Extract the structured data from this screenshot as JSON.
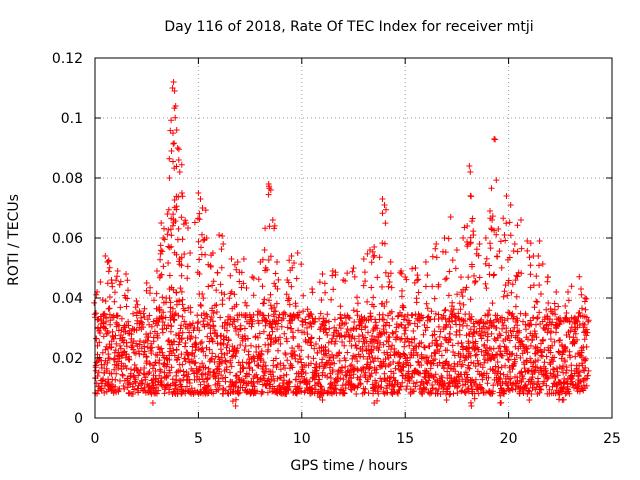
{
  "chart_data": {
    "type": "scatter",
    "title": "Day 116 of 2018, Rate Of TEC Index for receiver mtji",
    "xlabel": "GPS time / hours",
    "ylabel": "ROTI / TECUs",
    "xlim": [
      0,
      25
    ],
    "ylim": [
      0,
      0.12
    ],
    "xticks": [
      0,
      5,
      10,
      15,
      20,
      25
    ],
    "xtick_labels": [
      "0",
      "5",
      "10",
      "15",
      "20",
      "25"
    ],
    "yticks": [
      0,
      0.02,
      0.04,
      0.06,
      0.08,
      0.1,
      0.12
    ],
    "ytick_labels": [
      "0",
      "0.02",
      "0.04",
      "0.06",
      "0.08",
      "0.1",
      "0.12"
    ],
    "grid": true,
    "marker": "plus",
    "series_color": "#ff0000",
    "data_extent_x": [
      0,
      23.8
    ],
    "series": [
      {
        "name": "ROTI",
        "points": [
          [
            0.1,
            0.042
          ],
          [
            0.3,
            0.033
          ],
          [
            0.5,
            0.054
          ],
          [
            0.6,
            0.052
          ],
          [
            0.8,
            0.046
          ],
          [
            1.1,
            0.049
          ],
          [
            1.5,
            0.048
          ],
          [
            2.0,
            0.039
          ],
          [
            2.5,
            0.045
          ],
          [
            3.0,
            0.049
          ],
          [
            3.2,
            0.065
          ],
          [
            3.3,
            0.06
          ],
          [
            3.5,
            0.068
          ],
          [
            3.6,
            0.08
          ],
          [
            3.7,
            0.089
          ],
          [
            3.75,
            0.11
          ],
          [
            3.8,
            0.112
          ],
          [
            3.85,
            0.109
          ],
          [
            3.9,
            0.104
          ],
          [
            3.95,
            0.096
          ],
          [
            4.0,
            0.09
          ],
          [
            4.05,
            0.086
          ],
          [
            4.1,
            0.082
          ],
          [
            4.2,
            0.075
          ],
          [
            4.4,
            0.065
          ],
          [
            4.6,
            0.055
          ],
          [
            5.0,
            0.075
          ],
          [
            5.1,
            0.073
          ],
          [
            5.2,
            0.07
          ],
          [
            5.4,
            0.06
          ],
          [
            5.7,
            0.055
          ],
          [
            6.0,
            0.061
          ],
          [
            6.2,
            0.058
          ],
          [
            6.6,
            0.053
          ],
          [
            6.9,
            0.052
          ],
          [
            7.2,
            0.053
          ],
          [
            7.6,
            0.047
          ],
          [
            8.0,
            0.052
          ],
          [
            8.2,
            0.056
          ],
          [
            8.4,
            0.078
          ],
          [
            8.5,
            0.076
          ],
          [
            8.6,
            0.066
          ],
          [
            8.8,
            0.052
          ],
          [
            9.3,
            0.046
          ],
          [
            9.5,
            0.054
          ],
          [
            9.8,
            0.055
          ],
          [
            10.5,
            0.043
          ],
          [
            11.0,
            0.048
          ],
          [
            11.5,
            0.049
          ],
          [
            12.0,
            0.046
          ],
          [
            12.5,
            0.05
          ],
          [
            13.0,
            0.053
          ],
          [
            13.3,
            0.056
          ],
          [
            13.5,
            0.057
          ],
          [
            13.9,
            0.073
          ],
          [
            14.0,
            0.071
          ],
          [
            14.3,
            0.052
          ],
          [
            14.8,
            0.049
          ],
          [
            15.0,
            0.047
          ],
          [
            15.5,
            0.05
          ],
          [
            16.0,
            0.052
          ],
          [
            16.5,
            0.058
          ],
          [
            16.9,
            0.06
          ],
          [
            17.2,
            0.067
          ],
          [
            17.5,
            0.056
          ],
          [
            17.8,
            0.06
          ],
          [
            18.0,
            0.064
          ],
          [
            18.1,
            0.084
          ],
          [
            18.15,
            0.082
          ],
          [
            18.3,
            0.061
          ],
          [
            18.6,
            0.058
          ],
          [
            18.9,
            0.06
          ],
          [
            19.1,
            0.069
          ],
          [
            19.2,
            0.066
          ],
          [
            19.3,
            0.093
          ],
          [
            19.5,
            0.063
          ],
          [
            19.8,
            0.061
          ],
          [
            19.9,
            0.074
          ],
          [
            20.1,
            0.071
          ],
          [
            20.3,
            0.058
          ],
          [
            20.6,
            0.066
          ],
          [
            20.9,
            0.059
          ],
          [
            21.2,
            0.054
          ],
          [
            21.5,
            0.059
          ],
          [
            21.9,
            0.047
          ],
          [
            22.3,
            0.042
          ],
          [
            22.8,
            0.035
          ],
          [
            23.2,
            0.033
          ],
          [
            23.5,
            0.043
          ],
          [
            23.7,
            0.04
          ],
          [
            2.8,
            0.005
          ],
          [
            6.8,
            0.004
          ],
          [
            11.0,
            0.006
          ],
          [
            13.5,
            0.005
          ],
          [
            17.0,
            0.006
          ],
          [
            18.2,
            0.004
          ],
          [
            19.6,
            0.005
          ],
          [
            21.0,
            0.006
          ],
          [
            22.6,
            0.006
          ],
          [
            23.7,
            0.01
          ]
        ],
        "dense_band": {
          "note": "dense cloud of points across the full time range",
          "typical_range": [
            0.008,
            0.035
          ]
        }
      }
    ]
  }
}
